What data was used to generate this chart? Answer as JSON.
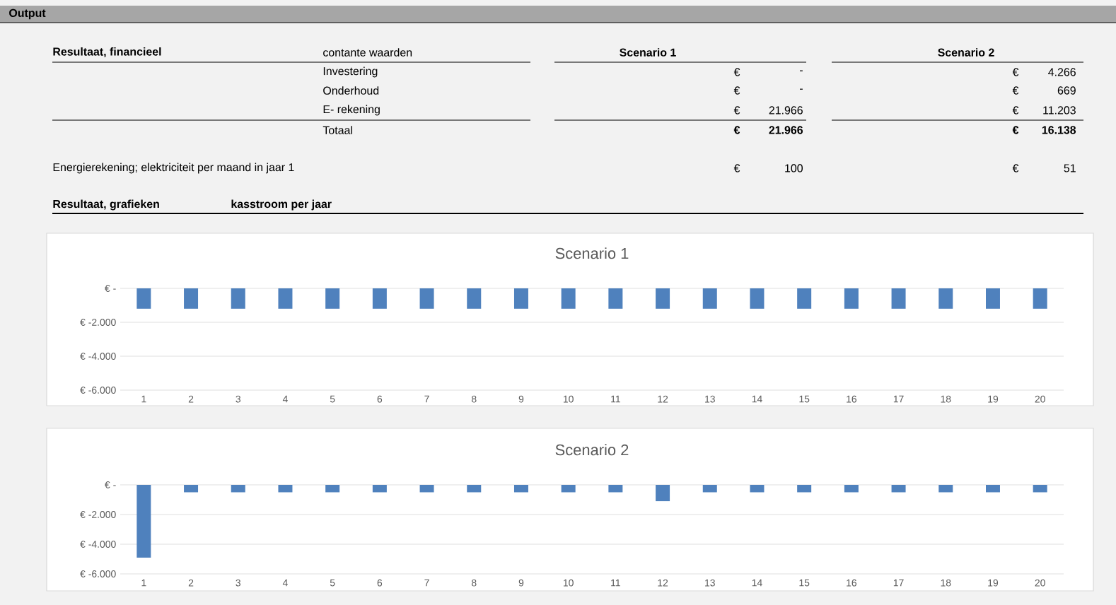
{
  "chart_data": [
    {
      "type": "other",
      "title": "Output",
      "annotations": [
        "Resultaat, financieel",
        "contante waarden",
        "Scenario 1",
        "Scenario 2",
        "Investering",
        "Onderhoud",
        "E- rekening",
        "Totaal",
        "€",
        "-",
        "€",
        "-",
        "€",
        "21.966",
        "€",
        "21.966",
        "€",
        "4.266",
        "€",
        "669",
        "€",
        "11.203",
        "€",
        "16.138",
        "Energierekening; elektriciteit per maand in jaar 1",
        "€",
        "100",
        "€",
        "51",
        "Resultaat, grafieken",
        "kasstroom per jaar"
      ]
    },
    {
      "type": "bar",
      "title": "Scenario 1",
      "categories": [
        "1",
        "2",
        "3",
        "4",
        "5",
        "6",
        "7",
        "8",
        "9",
        "10",
        "11",
        "12",
        "13",
        "14",
        "15",
        "16",
        "17",
        "18",
        "19",
        "20"
      ],
      "values": [
        -1200,
        -1200,
        -1200,
        -1200,
        -1200,
        -1200,
        -1200,
        -1200,
        -1200,
        -1200,
        -1200,
        -1200,
        -1200,
        -1200,
        -1200,
        -1200,
        -1200,
        -1200,
        -1200,
        -1200
      ],
      "color": "#4f81bd",
      "ylim": [
        -6000,
        0
      ],
      "yticks": [
        {
          "value": -6000,
          "label": "€ -6.000"
        },
        {
          "value": -4000,
          "label": "€ -4.000"
        },
        {
          "value": -2000,
          "label": "€ -2.000"
        },
        {
          "value": 0,
          "label": "€ -"
        }
      ],
      "grid": "y"
    },
    {
      "type": "bar",
      "title": "Scenario 2",
      "categories": [
        "1",
        "2",
        "3",
        "4",
        "5",
        "6",
        "7",
        "8",
        "9",
        "10",
        "11",
        "12",
        "13",
        "14",
        "15",
        "16",
        "17",
        "18",
        "19",
        "20"
      ],
      "values": [
        -4900,
        -500,
        -500,
        -500,
        -500,
        -500,
        -500,
        -500,
        -500,
        -500,
        -500,
        -1100,
        -500,
        -500,
        -500,
        -500,
        -500,
        -500,
        -500,
        -500
      ],
      "color": "#4f81bd",
      "ylim": [
        -6000,
        0
      ],
      "yticks": [
        {
          "value": -6000,
          "label": "€ -6.000"
        },
        {
          "value": -4000,
          "label": "€ -4.000"
        },
        {
          "value": -2000,
          "label": "€ -2.000"
        },
        {
          "value": 0,
          "label": "€ -"
        }
      ],
      "grid": "y"
    }
  ]
}
